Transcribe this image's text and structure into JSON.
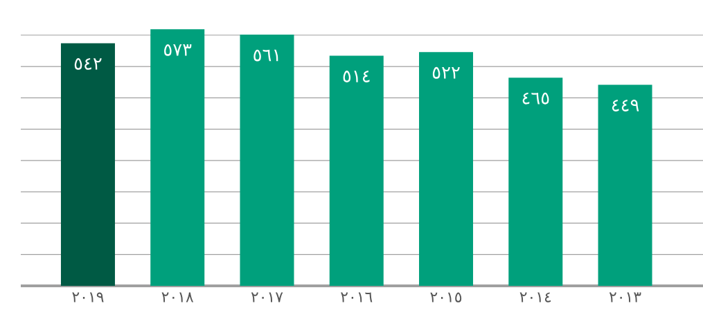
{
  "chart_data": {
    "type": "bar",
    "categories": [
      "٢٠١٩",
      "٢٠١٨",
      "٢٠١٧",
      "٢٠١٦",
      "٢٠١٥",
      "٢٠١٤",
      "٢٠١٣"
    ],
    "values": [
      542,
      573,
      561,
      514,
      522,
      465,
      449
    ],
    "value_labels": [
      "٥٤٢",
      "٥٧٣",
      "٥٦١",
      "٥١٤",
      "٥٢٢",
      "٤٦٥",
      "٤٤٩"
    ],
    "colors": [
      "#005a44",
      "#00a07c",
      "#00a07c",
      "#00a07c",
      "#00a07c",
      "#00a07c",
      "#00a07c"
    ],
    "grid": "y"
  }
}
